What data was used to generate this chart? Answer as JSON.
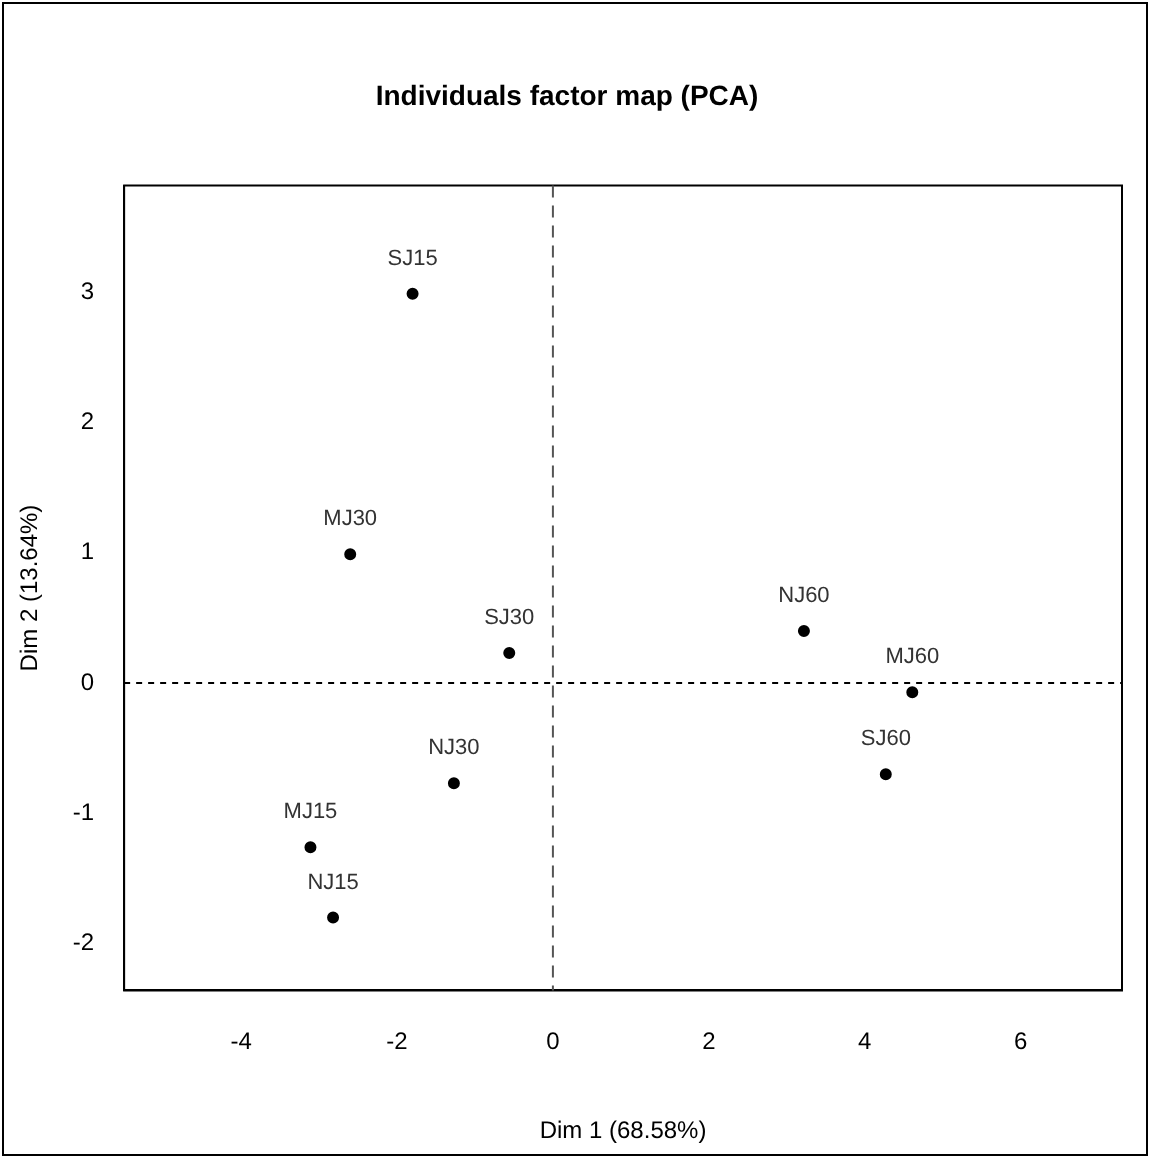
{
  "chart_data": {
    "type": "scatter",
    "title": "Individuals factor map (PCA)",
    "xlabel": "Dim 1 (68.58%)",
    "ylabel": "Dim 2 (13.64%)",
    "series": [
      {
        "color": "#000000",
        "x": [
          -1.8,
          -2.6,
          -0.56,
          -1.27,
          -3.11,
          -2.82,
          3.22,
          4.61,
          4.27
        ],
        "values": [
          2.99,
          0.99,
          0.23,
          -0.77,
          -1.26,
          -1.8,
          0.4,
          -0.07,
          -0.7
        ]
      }
    ],
    "annotations": [
      {
        "text": "SJ15",
        "x": -1.8,
        "y": 2.99
      },
      {
        "text": "MJ30",
        "x": -2.6,
        "y": 0.99
      },
      {
        "text": "SJ30",
        "x": -0.56,
        "y": 0.23
      },
      {
        "text": "NJ30",
        "x": -1.27,
        "y": -0.77
      },
      {
        "text": "MJ15",
        "x": -3.11,
        "y": -1.26
      },
      {
        "text": "NJ15",
        "x": -2.82,
        "y": -1.8
      },
      {
        "text": "NJ60",
        "x": 3.22,
        "y": 0.4
      },
      {
        "text": "MJ60",
        "x": 4.61,
        "y": -0.07
      },
      {
        "text": "SJ60",
        "x": 4.27,
        "y": -0.7
      }
    ],
    "ref_lines": [
      {
        "axis": "x",
        "value": 0,
        "line_style": "dashed",
        "color": "#555555"
      },
      {
        "axis": "y",
        "value": 0,
        "line_style": "dotted",
        "color": "#000000"
      }
    ],
    "xlim": [
      -5.5,
      7.3
    ],
    "ylim": [
      -2.36,
      3.82
    ],
    "xticks": [
      -4,
      -2,
      0,
      2,
      4,
      6
    ],
    "yticks": [
      -2,
      -1,
      0,
      1,
      2,
      3
    ],
    "grid": false,
    "legend": false,
    "marker": "circle"
  }
}
